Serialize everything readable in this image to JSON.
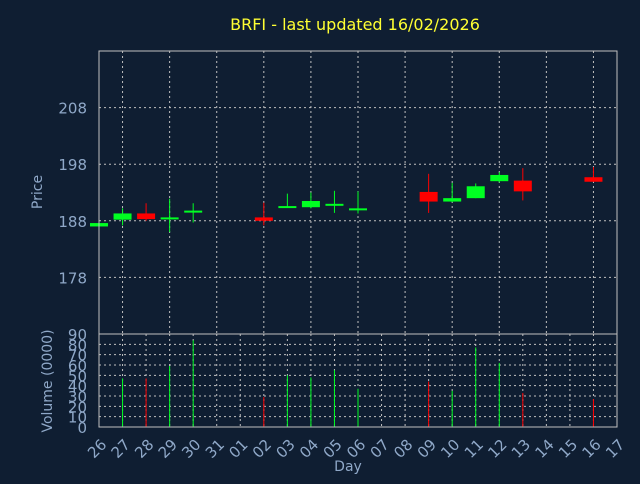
{
  "chart_data": {
    "type": "candlestick",
    "title": "BRFI - last updated 16/02/2026",
    "price_panel": {
      "ylabel": "Price",
      "ylim": [
        168,
        218
      ],
      "yticks": [
        178,
        188,
        198,
        208
      ]
    },
    "volume_panel": {
      "ylabel": "Volume (0000)",
      "ylim": [
        0,
        90
      ],
      "yticks": [
        0,
        10,
        20,
        30,
        40,
        50,
        60,
        70,
        80,
        90
      ]
    },
    "xlabel": "Day",
    "x_tick_labels": [
      "26",
      "27",
      "28",
      "29",
      "30",
      "31",
      "01",
      "02",
      "03",
      "04",
      "05",
      "06",
      "07",
      "08",
      "09",
      "10",
      "11",
      "12",
      "13",
      "14",
      "15",
      "16",
      "17"
    ],
    "grid": true,
    "colors": {
      "background": "#0f1e32",
      "title": "#ffff33",
      "axis_text": "#8fa8c8",
      "up": "#00ff22",
      "down": "#ff0000",
      "grid": "#c0c0c0"
    },
    "candles": [
      {
        "day": "26",
        "open": 187.0,
        "close": 187.6,
        "high": 187.6,
        "low": 187.0,
        "volume": 0
      },
      {
        "day": "27",
        "open": 188.2,
        "close": 189.3,
        "high": 190.2,
        "low": 187.2,
        "volume": 47
      },
      {
        "day": "28",
        "open": 189.3,
        "close": 188.3,
        "high": 191.1,
        "low": 188.0,
        "volume": 47
      },
      {
        "day": "29",
        "open": 188.3,
        "close": 188.6,
        "high": 191.9,
        "low": 186.0,
        "volume": 59
      },
      {
        "day": "30",
        "open": 189.5,
        "close": 189.8,
        "high": 191.1,
        "low": 187.7,
        "volume": 84
      },
      {
        "day": "02",
        "open": 188.6,
        "close": 188.0,
        "high": 191.2,
        "low": 187.2,
        "volume": 29
      },
      {
        "day": "03",
        "open": 190.3,
        "close": 190.6,
        "high": 192.8,
        "low": 190.3,
        "volume": 50
      },
      {
        "day": "04",
        "open": 190.4,
        "close": 191.5,
        "high": 193.0,
        "low": 190.2,
        "volume": 48
      },
      {
        "day": "05",
        "open": 190.7,
        "close": 191.0,
        "high": 193.3,
        "low": 189.4,
        "volume": 55
      },
      {
        "day": "06",
        "open": 189.9,
        "close": 190.2,
        "high": 193.2,
        "low": 189.3,
        "volume": 37
      },
      {
        "day": "09",
        "open": 193.1,
        "close": 191.4,
        "high": 196.3,
        "low": 189.4,
        "volume": 44
      },
      {
        "day": "10",
        "open": 191.4,
        "close": 192.0,
        "high": 194.7,
        "low": 191.3,
        "volume": 35
      },
      {
        "day": "11",
        "open": 192.0,
        "close": 194.1,
        "high": 194.6,
        "low": 192.0,
        "volume": 77
      },
      {
        "day": "12",
        "open": 195.0,
        "close": 196.1,
        "high": 196.6,
        "low": 194.8,
        "volume": 62
      },
      {
        "day": "13",
        "open": 195.1,
        "close": 193.2,
        "high": 197.3,
        "low": 191.6,
        "volume": 33
      },
      {
        "day": "16",
        "open": 195.7,
        "close": 194.9,
        "high": 197.5,
        "low": 194.9,
        "volume": 27
      }
    ]
  }
}
